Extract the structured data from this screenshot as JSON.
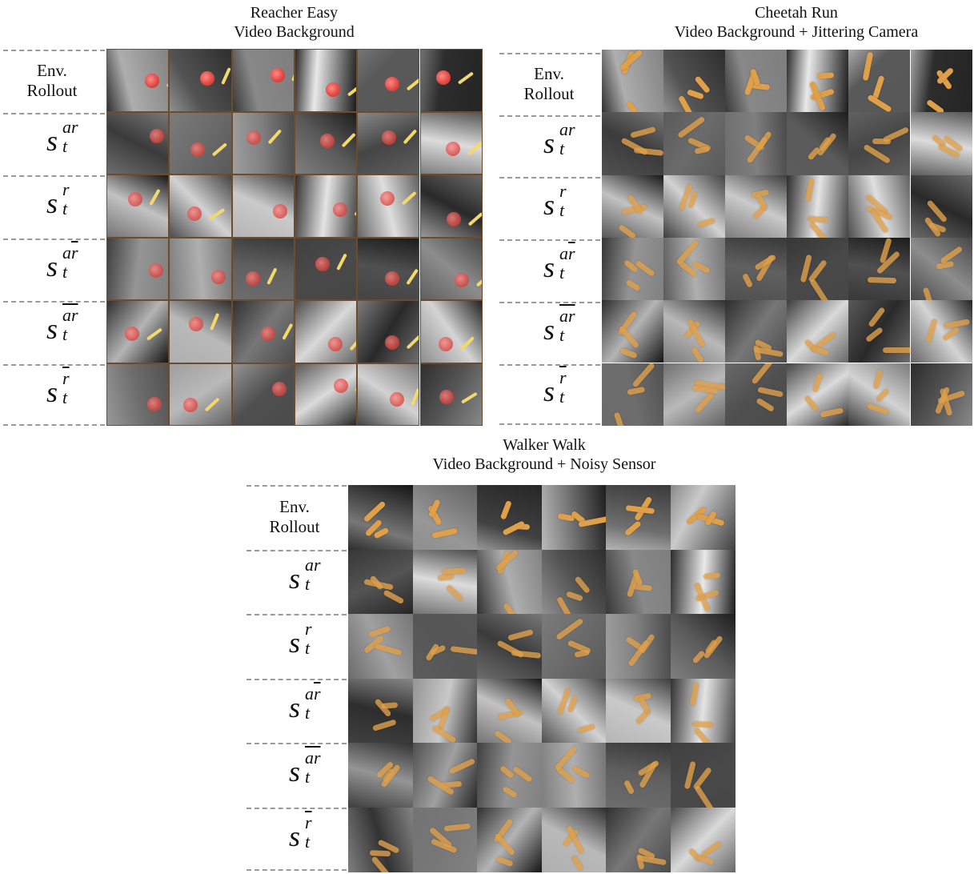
{
  "panels": [
    {
      "id": "reacher",
      "title_line1": "Reacher Easy",
      "title_line2": "Video Background",
      "rows": [
        "Env. Rollout",
        "s_t^ar",
        "s_t^r",
        "s_t^ar̄",
        "s_t^ār̄",
        "s_t^r̄"
      ]
    },
    {
      "id": "cheetah",
      "title_line1": "Cheetah Run",
      "title_line2": "Video Background + Jittering Camera",
      "rows": [
        "Env. Rollout",
        "s_t^ar",
        "s_t^r",
        "s_t^ar̄",
        "s_t^ār̄",
        "s_t^r̄"
      ]
    },
    {
      "id": "walker",
      "title_line1": "Walker Walk",
      "title_line2": "Video Background + Noisy Sensor",
      "rows": [
        "Env. Rollout",
        "s_t^ar",
        "s_t^r",
        "s_t^ar̄",
        "s_t^ār̄",
        "s_t^r̄"
      ]
    }
  ],
  "labels": {
    "env_line1": "Env.",
    "env_line2": "Rollout",
    "s": "s",
    "t": "t",
    "ar": "ar",
    "r": "r",
    "a": "a",
    "rbar": "r"
  },
  "colors": {
    "reacher_border": "#6e4b2c",
    "ball": "#e0453e",
    "arm": "#f3d96a",
    "limb": "#e0a04a"
  }
}
